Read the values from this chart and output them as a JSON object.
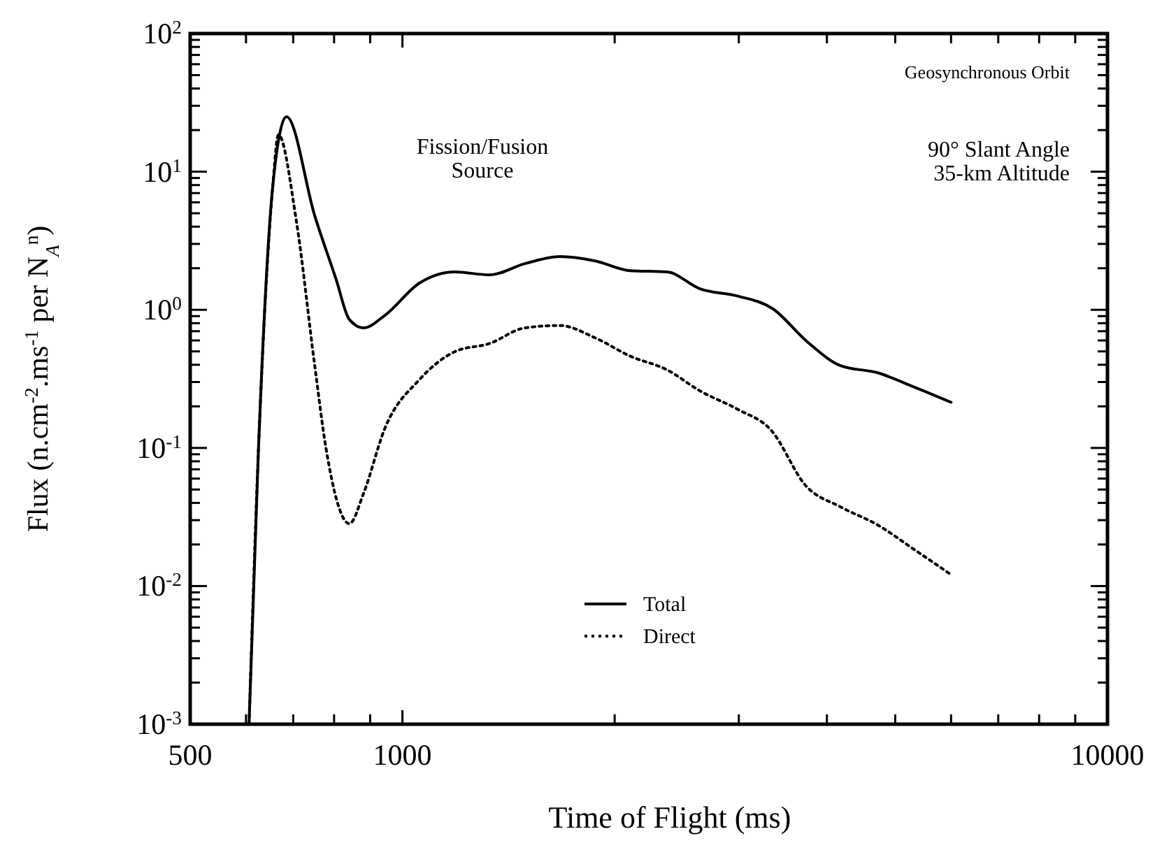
{
  "chart_data": {
    "type": "line",
    "xlabel": "Time of Flight (ms)",
    "ylabel": "Flux (n.cm$^{-2}$.ms$^{-1}$ per N$_{A}$$^{n}$)",
    "log": "xy",
    "xlim": [
      500,
      10000
    ],
    "ylim": [
      0.001,
      100
    ],
    "xticks": [
      500,
      {
        "value": 600,
        "label": null
      },
      {
        "value": 700,
        "label": null
      },
      {
        "value": 800,
        "label": null
      },
      {
        "value": 900,
        "label": null
      },
      1000,
      {
        "value": 2000,
        "label": null
      },
      {
        "value": 3000,
        "label": null
      },
      {
        "value": 4000,
        "label": null
      },
      {
        "value": 5000,
        "label": null
      },
      {
        "value": 6000,
        "label": null
      },
      {
        "value": 7000,
        "label": null
      },
      {
        "value": 8000,
        "label": null
      },
      {
        "value": 9000,
        "label": null
      },
      10000
    ],
    "yticks": [
      {
        "value": 0.001,
        "label": "10$^{-3}$"
      },
      {
        "value": 0.01,
        "label": "10$^{-2}$"
      },
      {
        "value": 0.1,
        "label": "10$^{-1}$"
      },
      {
        "value": 1,
        "label": "10$^{0}$"
      },
      {
        "value": 10,
        "label": "10$^{1}$"
      },
      {
        "value": 100,
        "label": "10$^{2}$"
      }
    ],
    "annotations": [
      "Fission/Fusion\nSource",
      "Geosynchronous Orbit",
      "90° Slant Angle\n35-km Altitude"
    ],
    "legend": "bottom",
    "marker": "none",
    "grid": false,
    "series": [
      {
        "name": "Total",
        "color": "#000000",
        "line_style": "solid",
        "x": [
          606,
          625,
          655,
          685,
          751,
          805,
          841,
          881,
          944,
          1057,
          1186,
          1330,
          1492,
          1673,
          1876,
          2102,
          2374,
          2642,
          2985,
          3350,
          3754,
          4183,
          4721,
          5302,
          6000
        ],
        "values": [
          0.001,
          0.1,
          8,
          25,
          4.8,
          1.67,
          0.85,
          0.74,
          0.91,
          1.56,
          1.88,
          1.79,
          2.16,
          2.43,
          2.26,
          1.92,
          1.88,
          1.42,
          1.26,
          1.02,
          0.585,
          0.394,
          0.35,
          0.278,
          0.214
        ]
      },
      {
        "name": "Direct",
        "color": "#000000",
        "line_style": "dotted",
        "x": [
          606,
          625,
          655,
          667,
          707,
          751,
          779,
          841,
          881,
          944,
          1057,
          1186,
          1330,
          1492,
          1673,
          1876,
          2102,
          2374,
          2642,
          2985,
          3331,
          3737,
          4183,
          4721,
          5302,
          6000
        ],
        "values": [
          0.001,
          0.1,
          8,
          18.5,
          4.45,
          0.394,
          0.1,
          0.0283,
          0.047,
          0.138,
          0.312,
          0.497,
          0.571,
          0.74,
          0.77,
          0.627,
          0.463,
          0.367,
          0.259,
          0.191,
          0.135,
          0.053,
          0.0374,
          0.0277,
          0.0186,
          0.0121
        ]
      }
    ]
  }
}
